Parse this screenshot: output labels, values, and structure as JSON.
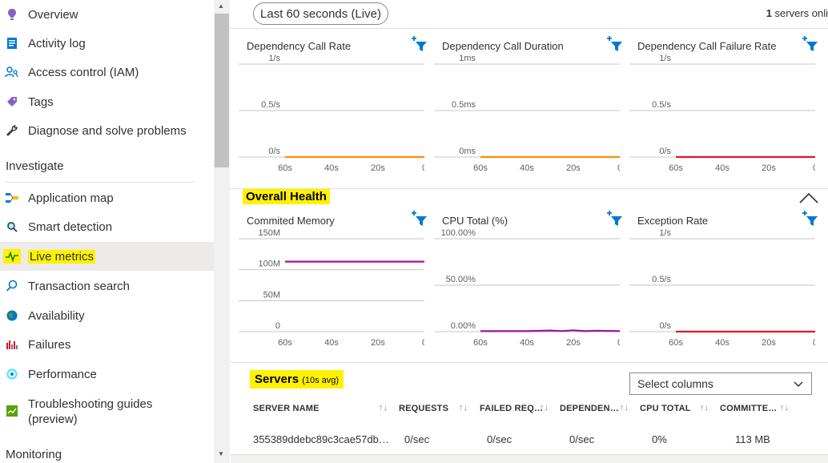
{
  "sidebar": {
    "items_top": [
      {
        "label": "Overview",
        "icon": "overview-icon"
      },
      {
        "label": "Activity log",
        "icon": "activity-log-icon"
      },
      {
        "label": "Access control (IAM)",
        "icon": "access-control-icon"
      },
      {
        "label": "Tags",
        "icon": "tag-icon"
      },
      {
        "label": "Diagnose and solve problems",
        "icon": "wrench-icon"
      }
    ],
    "section_investigate": "Investigate",
    "items_investigate": [
      {
        "label": "Application map",
        "icon": "application-map-icon"
      },
      {
        "label": "Smart detection",
        "icon": "smart-detection-icon"
      },
      {
        "label": "Live metrics",
        "icon": "live-metrics-icon"
      },
      {
        "label": "Transaction search",
        "icon": "search-icon"
      },
      {
        "label": "Availability",
        "icon": "globe-icon"
      },
      {
        "label": "Failures",
        "icon": "failures-icon"
      },
      {
        "label": "Performance",
        "icon": "performance-icon"
      },
      {
        "label": "Troubleshooting guides",
        "label2": "(preview)",
        "icon": "troubleshooting-icon"
      }
    ],
    "section_monitoring": "Monitoring",
    "active_item": "Live metrics"
  },
  "toolbar": {
    "time_range": "Last 60 seconds (Live)",
    "servers_count": "1",
    "servers_suffix": " servers onli"
  },
  "charts_row1": [
    {
      "title": "Dependency Call Rate",
      "yticks": [
        "1/s",
        "0.5/s",
        "0/s"
      ],
      "series_color": "#ff8c00"
    },
    {
      "title": "Dependency Call Duration",
      "yticks": [
        "1ms",
        "0.5ms",
        "0ms"
      ],
      "series_color": "#ff8c00"
    },
    {
      "title": "Dependency Call Failure Rate",
      "yticks": [
        "1/s",
        "0.5/s",
        "0/s"
      ],
      "series_color": "#e81123"
    }
  ],
  "overall_health": {
    "title": "Overall Health",
    "charts": [
      {
        "title": "Commited Memory",
        "yticks": [
          "150M",
          "100M",
          "50M",
          "0"
        ],
        "series_color": "#a80f9b"
      },
      {
        "title": "CPU Total (%)",
        "yticks": [
          "100.00%",
          "50.00%",
          "0.00%"
        ],
        "series_color": "#a80f9b"
      },
      {
        "title": "Exception Rate",
        "yticks": [
          "1/s",
          "0.5/s",
          "0/s"
        ],
        "series_color": "#e81123"
      }
    ]
  },
  "xticks": [
    "60s",
    "40s",
    "20s",
    "0"
  ],
  "chart_data": [
    {
      "type": "line",
      "title": "Dependency Call Rate",
      "x": [
        60,
        0
      ],
      "y": [
        0,
        0
      ],
      "ylim": [
        0,
        1
      ],
      "unit": "/s"
    },
    {
      "type": "line",
      "title": "Dependency Call Duration",
      "x": [
        60,
        0
      ],
      "y": [
        0,
        0
      ],
      "ylim": [
        0,
        1
      ],
      "unit": "ms"
    },
    {
      "type": "line",
      "title": "Dependency Call Failure Rate",
      "x": [
        60,
        0
      ],
      "y": [
        0,
        0
      ],
      "ylim": [
        0,
        1
      ],
      "unit": "/s"
    },
    {
      "type": "line",
      "title": "Commited Memory",
      "x": [
        60,
        0
      ],
      "y": [
        113,
        113
      ],
      "ylim": [
        0,
        150
      ],
      "unit": "M"
    },
    {
      "type": "line",
      "title": "CPU Total (%)",
      "x": [
        60,
        40,
        30,
        25,
        20,
        15,
        10,
        0
      ],
      "y": [
        0.5,
        0.5,
        1.2,
        0.6,
        1.5,
        0.5,
        1,
        0.5
      ],
      "ylim": [
        0,
        100
      ],
      "unit": "%"
    },
    {
      "type": "line",
      "title": "Exception Rate",
      "x": [
        60,
        0
      ],
      "y": [
        0,
        0
      ],
      "ylim": [
        0,
        1
      ],
      "unit": "/s"
    }
  ],
  "servers": {
    "title": "Servers",
    "subtitle": "(10s avg)",
    "select_columns": "Select columns",
    "columns": [
      "SERVER NAME",
      "REQUESTS",
      "FAILED REQ…",
      "DEPENDEN…",
      "CPU TOTAL",
      "COMMITTE…"
    ],
    "rows": [
      [
        "355389ddebc89c3cae57db…",
        "0/sec",
        "0/sec",
        "0/sec",
        "0%",
        "113 MB"
      ]
    ]
  }
}
